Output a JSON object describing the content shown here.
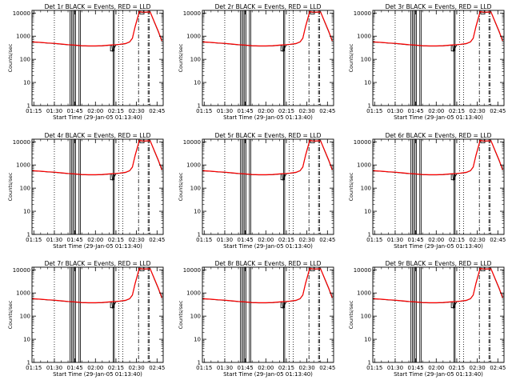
{
  "chart_data": {
    "type": "line",
    "scale": "log-y",
    "shared": {
      "x_tick_labels": [
        "01:15",
        "01:30",
        "01:45",
        "02:00",
        "02:15",
        "02:30",
        "02:45"
      ],
      "x_tick_minutes": [
        15,
        30,
        45,
        60,
        75,
        90,
        105
      ],
      "x_range_minutes": [
        13.67,
        109.5
      ],
      "y_tick_labels": [
        "1",
        "10",
        "100",
        "1000",
        "10000"
      ],
      "y_tick_values": [
        1,
        10,
        100,
        1000,
        10000
      ],
      "ylim": [
        1,
        13000
      ],
      "ylabel": "Counts/sec",
      "xlabel": "Start Time (29-Jan-05 01:13:40)",
      "dotted_lines_minutes": [
        30,
        77,
        80
      ],
      "solid_lines_minutes": [
        41.5,
        42.5,
        43.5,
        44.5,
        45.5,
        48.0,
        49.0,
        73.0,
        73.8
      ],
      "dashdot_lines_minutes": [
        91.5,
        98.5,
        99.2
      ],
      "series": [
        {
          "name": "Events",
          "color": "#000000",
          "x": [
            13.67,
            20,
            25,
            30,
            35,
            40,
            45,
            50,
            55,
            60,
            65,
            70,
            72,
            72.5,
            75,
            78,
            82,
            85,
            87,
            89,
            92,
            95,
            100,
            103,
            106,
            108.5
          ],
          "y": [
            560,
            530,
            500,
            480,
            450,
            420,
            400,
            380,
            370,
            370,
            380,
            400,
            410,
            230,
            420,
            440,
            470,
            560,
            800,
            2500,
            11000,
            10500,
            11000,
            4000,
            1500,
            600
          ]
        },
        {
          "name": "LLD",
          "color": "#ff0000",
          "x": [
            13.67,
            20,
            25,
            30,
            35,
            40,
            45,
            50,
            55,
            60,
            65,
            70,
            72,
            75,
            78,
            82,
            85,
            87,
            89,
            92,
            95,
            100,
            103,
            106,
            108.5
          ],
          "y": [
            570,
            540,
            510,
            490,
            460,
            430,
            410,
            390,
            380,
            380,
            390,
            410,
            420,
            430,
            450,
            480,
            570,
            820,
            2600,
            11500,
            10800,
            11200,
            4200,
            1600,
            620
          ]
        }
      ],
      "step_box": {
        "x_start": 71,
        "x_end": 73.5,
        "y_low": 230,
        "y_high": 400
      },
      "peak_box": {
        "x_start": 92.5,
        "x_end": 95.5,
        "y_low": 9000,
        "y_high": 13000
      }
    },
    "panels": [
      {
        "title": "Det 1r BLACK = Events, RED = LLD"
      },
      {
        "title": "Det 2r BLACK = Events, RED = LLD"
      },
      {
        "title": "Det 3r BLACK = Events, RED = LLD"
      },
      {
        "title": "Det 4r BLACK = Events, RED = LLD"
      },
      {
        "title": "Det 5r BLACK = Events, RED = LLD"
      },
      {
        "title": "Det 6r BLACK = Events, RED = LLD"
      },
      {
        "title": "Det 7r BLACK = Events, RED = LLD"
      },
      {
        "title": "Det 8r BLACK = Events, RED = LLD"
      },
      {
        "title": "Det 9r BLACK = Events, RED = LLD"
      }
    ]
  }
}
